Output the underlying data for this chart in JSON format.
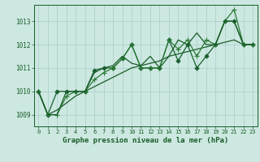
{
  "xlabel": "Graphe pression niveau de la mer (hPa)",
  "background_color": "#cce8e0",
  "grid_color": "#aacccc",
  "dark_green": "#1a5c2a",
  "mid_green": "#2d7a3a",
  "xlim": [
    -0.5,
    23.5
  ],
  "ylim": [
    1008.5,
    1013.7
  ],
  "yticks": [
    1009,
    1010,
    1011,
    1012,
    1013
  ],
  "xticks": [
    0,
    1,
    2,
    3,
    4,
    5,
    6,
    7,
    8,
    9,
    10,
    11,
    12,
    13,
    14,
    15,
    16,
    17,
    18,
    19,
    20,
    21,
    22,
    23
  ],
  "series": [
    {
      "x": [
        0,
        1,
        2,
        3,
        4,
        5,
        6,
        7,
        8,
        9,
        10,
        11,
        12,
        13,
        14,
        15,
        16,
        17,
        18,
        19,
        20,
        21,
        22,
        23
      ],
      "y": [
        1010.0,
        1009.0,
        1009.2,
        1009.5,
        1009.8,
        1010.0,
        1010.2,
        1010.4,
        1010.6,
        1010.8,
        1011.0,
        1011.1,
        1011.2,
        1011.3,
        1011.5,
        1011.6,
        1011.7,
        1011.8,
        1011.9,
        1012.0,
        1012.1,
        1012.2,
        1012.0,
        1012.0
      ],
      "color": "#1a5c2a",
      "linewidth": 0.9,
      "marker": null,
      "linestyle": "-"
    },
    {
      "x": [
        0,
        1,
        2,
        3,
        4,
        5,
        6,
        7,
        8,
        9,
        10,
        11,
        12,
        13,
        14,
        15,
        16,
        17,
        18,
        19,
        20,
        21,
        22,
        23
      ],
      "y": [
        1010.0,
        1009.0,
        1010.0,
        1010.0,
        1010.0,
        1010.0,
        1010.9,
        1011.0,
        1011.0,
        1011.4,
        1012.0,
        1011.0,
        1011.0,
        1011.0,
        1012.2,
        1011.3,
        1012.0,
        1011.0,
        1011.5,
        1012.0,
        1013.0,
        1013.0,
        1012.0,
        1012.0
      ],
      "color": "#1a6030",
      "linewidth": 0.9,
      "marker": "D",
      "markersize": 2.5,
      "linestyle": "-"
    },
    {
      "x": [
        0,
        1,
        2,
        3,
        4,
        5,
        6,
        7,
        8,
        9,
        10,
        11,
        12,
        13,
        14,
        15,
        16,
        17,
        18,
        19,
        20,
        21,
        22,
        23
      ],
      "y": [
        1010.0,
        1009.0,
        1009.0,
        1009.8,
        1010.0,
        1010.0,
        1010.5,
        1010.8,
        1011.0,
        1011.4,
        1012.0,
        1011.0,
        1011.0,
        1011.0,
        1012.2,
        1011.8,
        1012.2,
        1011.5,
        1012.2,
        1012.0,
        1013.0,
        1013.5,
        1012.0,
        1012.0
      ],
      "color": "#2a7a35",
      "linewidth": 0.9,
      "marker": "+",
      "markersize": 4,
      "linestyle": "-"
    },
    {
      "x": [
        0,
        1,
        2,
        3,
        4,
        5,
        6,
        7,
        8,
        9,
        10,
        11,
        12,
        13,
        14,
        15,
        16,
        17,
        18,
        19,
        20,
        21,
        22,
        23
      ],
      "y": [
        1010.0,
        1009.0,
        1009.0,
        1010.0,
        1010.0,
        1010.0,
        1010.8,
        1011.0,
        1011.1,
        1011.5,
        1011.2,
        1011.1,
        1011.5,
        1011.0,
        1011.5,
        1012.2,
        1012.0,
        1012.5,
        1012.0,
        1012.0,
        1013.0,
        1013.0,
        1012.0,
        1012.0
      ],
      "color": "#1a5c2a",
      "linewidth": 0.9,
      "marker": null,
      "linestyle": "-"
    }
  ]
}
